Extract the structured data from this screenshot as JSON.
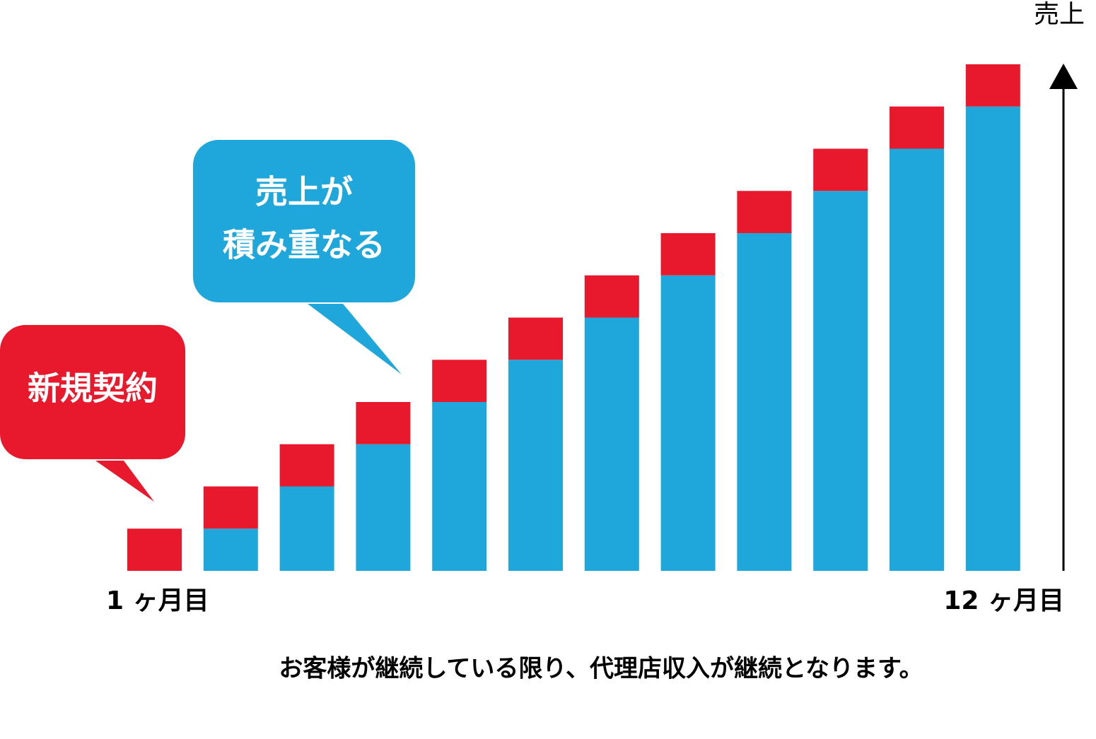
{
  "chart_data": {
    "type": "stacked_bar",
    "y_label": "売上",
    "categories": [
      "1 ヶ月目",
      null,
      null,
      null,
      null,
      null,
      null,
      null,
      null,
      null,
      null,
      "12 ヶ月目"
    ],
    "series": [
      {
        "color": "#1fa7db",
        "values": [
          0,
          1,
          2,
          3,
          4,
          5,
          6,
          7,
          8,
          9,
          10,
          11
        ]
      },
      {
        "color": "#e8192c",
        "values": [
          1,
          1,
          1,
          1,
          1,
          1,
          1,
          1,
          1,
          1,
          1,
          1
        ]
      }
    ],
    "ylim": [
      0,
      12
    ],
    "annotations": [
      {
        "lines": [
          "新規契約"
        ],
        "color": "#e8192c"
      },
      {
        "lines": [
          "売上が",
          "積み重なる"
        ],
        "color": "#1fa7db"
      }
    ],
    "footnote": "お客様が継続している限り、代理店収入が継続となります。"
  }
}
